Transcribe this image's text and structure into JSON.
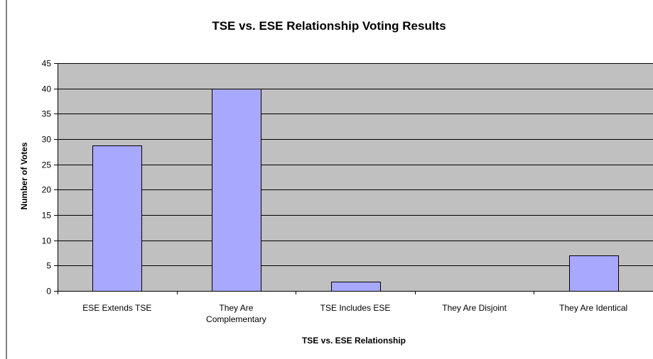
{
  "chart_data": {
    "type": "bar",
    "title": "TSE vs. ESE Relationship Voting Results",
    "xlabel": "TSE vs. ESE Relationship",
    "ylabel": "Number of Votes",
    "categories": [
      [
        "ESE Extends TSE"
      ],
      [
        "They Are",
        "Complementary"
      ],
      [
        "TSE Includes ESE"
      ],
      [
        "They Are Disjoint"
      ],
      [
        "They Are Identical"
      ]
    ],
    "values": [
      28.7,
      40,
      1.8,
      0,
      7
    ],
    "ylim": [
      0,
      45
    ],
    "yticks": [
      0,
      5,
      10,
      15,
      20,
      25,
      30,
      35,
      40,
      45
    ],
    "grid": true,
    "legend": "none",
    "colors": {
      "bar_fill": "#a8a8ff",
      "bar_stroke": "#000000",
      "plot_background": "#c0c0c0",
      "gridline": "#000000"
    }
  }
}
